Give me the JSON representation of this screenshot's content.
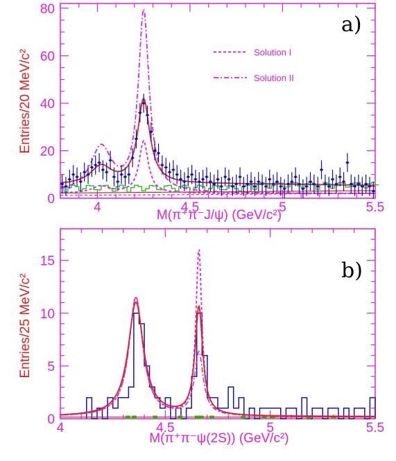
{
  "colors": {
    "frame": "#e020e0",
    "data_points": "#1010b0",
    "fit": "#e02020",
    "solution": "#e020e0",
    "background_hist": "#20c020",
    "signal_hist": "#1010c0",
    "bkg_marker": "#20d020"
  },
  "chart_data": [
    {
      "type": "line",
      "panel_label": "a)",
      "title": "",
      "xlabel": "M(π⁺π⁻J/ψ) (GeV/c²)",
      "ylabel": "Entries/20 MeV/c²",
      "xlim": [
        3.8,
        5.5
      ],
      "ylim": [
        0,
        82
      ],
      "x_ticks": [
        "4",
        "4.5",
        "5",
        "5.5"
      ],
      "y_ticks": [
        "0",
        "20",
        "40",
        "60",
        "80"
      ],
      "legend_position": "top-right",
      "legend": [
        {
          "label": "Solution I",
          "style": "dashed"
        },
        {
          "label": "Solution II",
          "style": "dash-dot"
        }
      ],
      "peaks": [
        {
          "x": 4.02,
          "y_fit": 13,
          "y_solution_II": 21
        },
        {
          "x": 4.25,
          "y_fit": 41,
          "y_solution_I": 22,
          "y_solution_II": 78
        }
      ],
      "points": [
        [
          3.81,
          6
        ],
        [
          3.83,
          5
        ],
        [
          3.85,
          8
        ],
        [
          3.87,
          10
        ],
        [
          3.89,
          9
        ],
        [
          3.91,
          7
        ],
        [
          3.93,
          11
        ],
        [
          3.95,
          10
        ],
        [
          3.97,
          13
        ],
        [
          3.99,
          14
        ],
        [
          4.01,
          15
        ],
        [
          4.03,
          12
        ],
        [
          4.05,
          11
        ],
        [
          4.07,
          16
        ],
        [
          4.09,
          9
        ],
        [
          4.11,
          7
        ],
        [
          4.13,
          10
        ],
        [
          4.15,
          9
        ],
        [
          4.17,
          10
        ],
        [
          4.19,
          17
        ],
        [
          4.21,
          25
        ],
        [
          4.23,
          36
        ],
        [
          4.25,
          40
        ],
        [
          4.27,
          35
        ],
        [
          4.29,
          28
        ],
        [
          4.31,
          20
        ],
        [
          4.33,
          19
        ],
        [
          4.35,
          14
        ],
        [
          4.37,
          13
        ],
        [
          4.39,
          11
        ],
        [
          4.41,
          12
        ],
        [
          4.43,
          10
        ],
        [
          4.45,
          8
        ],
        [
          4.47,
          7
        ],
        [
          4.49,
          9
        ],
        [
          4.51,
          10
        ],
        [
          4.53,
          8
        ],
        [
          4.55,
          7
        ],
        [
          4.57,
          8
        ],
        [
          4.59,
          9
        ],
        [
          4.61,
          7
        ],
        [
          4.63,
          6
        ],
        [
          4.65,
          8
        ],
        [
          4.67,
          5
        ],
        [
          4.69,
          9
        ],
        [
          4.71,
          8
        ],
        [
          4.73,
          5
        ],
        [
          4.75,
          6
        ],
        [
          4.77,
          9
        ],
        [
          4.79,
          5
        ],
        [
          4.81,
          6
        ],
        [
          4.83,
          7
        ],
        [
          4.85,
          5
        ],
        [
          4.87,
          7
        ],
        [
          4.89,
          6
        ],
        [
          4.91,
          5
        ],
        [
          4.93,
          8
        ],
        [
          4.95,
          6
        ],
        [
          4.97,
          7
        ],
        [
          4.99,
          5
        ],
        [
          5.01,
          4
        ],
        [
          5.03,
          6
        ],
        [
          5.05,
          7
        ],
        [
          5.07,
          9
        ],
        [
          5.09,
          6
        ],
        [
          5.11,
          4
        ],
        [
          5.13,
          5
        ],
        [
          5.15,
          7
        ],
        [
          5.17,
          6
        ],
        [
          5.19,
          5
        ],
        [
          5.21,
          12
        ],
        [
          5.23,
          6
        ],
        [
          5.25,
          5
        ],
        [
          5.27,
          8
        ],
        [
          5.29,
          6
        ],
        [
          5.31,
          9
        ],
        [
          5.33,
          7
        ],
        [
          5.35,
          15
        ],
        [
          5.37,
          6
        ],
        [
          5.39,
          5
        ],
        [
          5.41,
          6
        ],
        [
          5.43,
          5
        ],
        [
          5.45,
          6
        ],
        [
          5.47,
          5
        ],
        [
          5.49,
          3
        ]
      ],
      "error": 4
    },
    {
      "type": "line",
      "panel_label": "b)",
      "title": "",
      "xlabel": "M(π⁺π⁻ψ(2S)) (GeV/c²)",
      "ylabel": "Entries/25 MeV/c²",
      "xlim": [
        4.0,
        5.5
      ],
      "ylim": [
        0,
        18
      ],
      "x_ticks": [
        "4",
        "4.5",
        "5",
        "5.5"
      ],
      "y_ticks": [
        "0",
        "5",
        "10",
        "15"
      ],
      "peaks": [
        {
          "x": 4.36,
          "y_fit": 11,
          "y_solution_I": 11.5
        },
        {
          "x": 4.66,
          "y_fit": 10.5,
          "y_solution_I": 16,
          "y_solution_II": 6.2
        }
      ],
      "histogram": [
        [
          4.125,
          2
        ],
        [
          4.15,
          0
        ],
        [
          4.175,
          1
        ],
        [
          4.2,
          0
        ],
        [
          4.225,
          2
        ],
        [
          4.25,
          1
        ],
        [
          4.275,
          2
        ],
        [
          4.3,
          2
        ],
        [
          4.325,
          3
        ],
        [
          4.35,
          10
        ],
        [
          4.375,
          9
        ],
        [
          4.4,
          5
        ],
        [
          4.425,
          3
        ],
        [
          4.45,
          2
        ],
        [
          4.475,
          1
        ],
        [
          4.5,
          2
        ],
        [
          4.525,
          0
        ],
        [
          4.55,
          1
        ],
        [
          4.575,
          0
        ],
        [
          4.6,
          1
        ],
        [
          4.625,
          4
        ],
        [
          4.65,
          10
        ],
        [
          4.675,
          6
        ],
        [
          4.7,
          2
        ],
        [
          4.725,
          2
        ],
        [
          4.75,
          1
        ],
        [
          4.775,
          1
        ],
        [
          4.8,
          3
        ],
        [
          4.825,
          1
        ],
        [
          4.85,
          2
        ],
        [
          4.875,
          0
        ],
        [
          4.9,
          1
        ],
        [
          4.925,
          0
        ],
        [
          4.95,
          1
        ],
        [
          4.975,
          1
        ],
        [
          5,
          1
        ],
        [
          5.025,
          1
        ],
        [
          5.05,
          0
        ],
        [
          5.075,
          1
        ],
        [
          5.1,
          1
        ],
        [
          5.125,
          0
        ],
        [
          5.15,
          2
        ],
        [
          5.175,
          0
        ],
        [
          5.2,
          1
        ],
        [
          5.225,
          1
        ],
        [
          5.25,
          0
        ],
        [
          5.275,
          1
        ],
        [
          5.3,
          1
        ],
        [
          5.325,
          0
        ],
        [
          5.35,
          1
        ],
        [
          5.375,
          0
        ],
        [
          5.4,
          1
        ],
        [
          5.425,
          1
        ],
        [
          5.45,
          0
        ],
        [
          5.475,
          2
        ]
      ],
      "bkg_markers": [
        4.32,
        4.35,
        4.45,
        4.57,
        4.65,
        4.67,
        4.72,
        4.87,
        4.97,
        5.01,
        5.18,
        5.3
      ]
    }
  ]
}
